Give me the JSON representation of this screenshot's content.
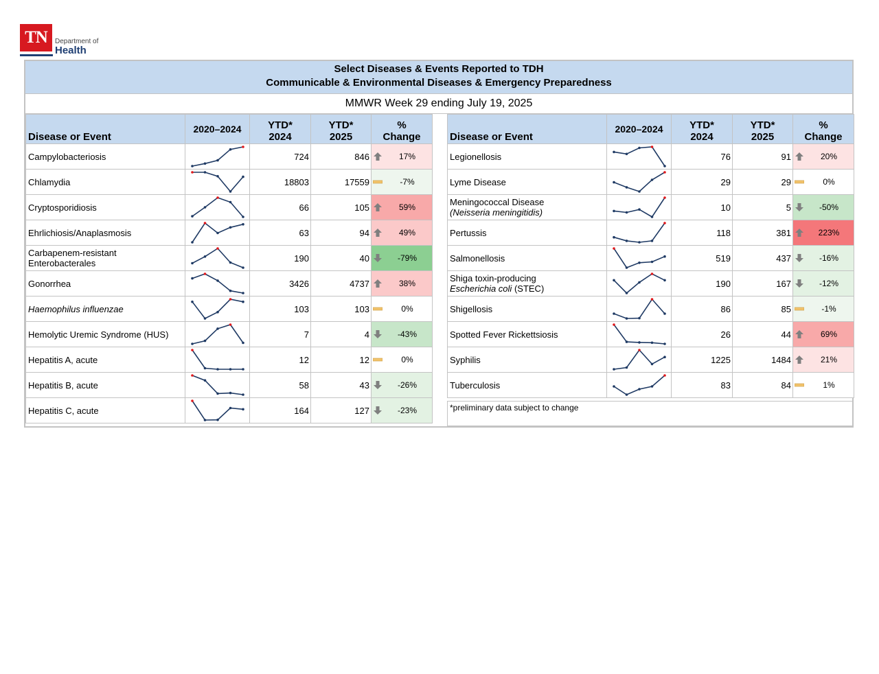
{
  "logo": {
    "mark": "TN",
    "dept": "Department of",
    "health": "Health",
    "colors": {
      "red": "#d71920",
      "navy": "#1f3f73"
    }
  },
  "report": {
    "title_line1": "Select Diseases & Events Reported to TDH",
    "title_line2": "Communicable & Environmental Diseases & Emergency Preparedness",
    "week": "MMWR Week 29 ending July 19, 2025",
    "headers": {
      "name": "Disease or Event",
      "years": "2020–2024",
      "ytd24_a": "YTD*",
      "ytd24_b": "2024",
      "ytd25_a": "YTD*",
      "ytd25_b": "2025",
      "chg_a": "%",
      "chg_b": "Change"
    },
    "footnote": "*preliminary data subject to change",
    "colors": {
      "header_bg": "#c5d9ef",
      "spark_line": "#1f3a64",
      "spark_peak": "#e3191c",
      "up_1": "#fde3e3",
      "up_2": "#fbc9c9",
      "up_3": "#f8a9a9",
      "up_4": "#f4777a",
      "down_1": "#e3f2e3",
      "down_2": "#c7e6c9",
      "down_3": "#8ccf92",
      "flat_neg": "#eef6ee",
      "flat": "#ffffff"
    }
  },
  "left_rows": [
    {
      "name": "Campylobacteriosis",
      "ytd24": "724",
      "ytd25": "846",
      "chg": "17%",
      "icon": "up",
      "tier": "up_1",
      "spark": [
        10,
        14,
        19,
        36,
        40
      ]
    },
    {
      "name": "Chlamydia",
      "ytd24": "18803",
      "ytd25": "17559",
      "chg": "-7%",
      "icon": "flat",
      "tier": "flat_neg",
      "spark": [
        38,
        38,
        31,
        4,
        30
      ]
    },
    {
      "name": "Cryptosporidiosis",
      "ytd24": "66",
      "ytd25": "105",
      "chg": "59%",
      "icon": "up",
      "tier": "up_3",
      "spark": [
        3,
        17,
        32,
        25,
        2
      ]
    },
    {
      "name": "Ehrlichiosis/Anaplasmosis",
      "ytd24": "63",
      "ytd25": "94",
      "chg": "49%",
      "icon": "up",
      "tier": "up_2",
      "spark": [
        2,
        33,
        17,
        26,
        31
      ]
    },
    {
      "name_line1": "Carbapenem-resistant",
      "name_line2": "Enterobacterales",
      "ytd24": "190",
      "ytd25": "40",
      "chg": "-79%",
      "icon": "down",
      "tier": "down_3",
      "spark": [
        24,
        33,
        44,
        25,
        18
      ]
    },
    {
      "name": "Gonorrhea",
      "ytd24": "3426",
      "ytd25": "4737",
      "chg": "38%",
      "icon": "up",
      "tier": "up_2",
      "spark": [
        37,
        41,
        35,
        26,
        24
      ]
    },
    {
      "name": "Haemophilus influenzae",
      "italic": true,
      "ytd24": "103",
      "ytd25": "103",
      "chg": "0%",
      "icon": "flat",
      "tier": "flat",
      "spark": [
        15,
        2,
        7,
        17,
        15
      ]
    },
    {
      "name": "Hemolytic Uremic Syndrome (HUS)",
      "ytd24": "7",
      "ytd25": "4",
      "chg": "-43%",
      "icon": "down",
      "tier": "down_2",
      "spark": [
        1,
        4,
        16,
        20,
        2
      ]
    },
    {
      "name": "Hepatitis A, acute",
      "ytd24": "12",
      "ytd25": "12",
      "chg": "0%",
      "icon": "flat",
      "tier": "flat",
      "spark": [
        60,
        8,
        5,
        5,
        5
      ]
    },
    {
      "name": "Hepatitis B, acute",
      "ytd24": "58",
      "ytd25": "43",
      "chg": "-26%",
      "icon": "down",
      "tier": "down_1",
      "spark": [
        59,
        50,
        26,
        27,
        24
      ]
    },
    {
      "name": "Hepatitis C, acute",
      "ytd24": "164",
      "ytd25": "127",
      "chg": "-23%",
      "icon": "down",
      "tier": "down_1",
      "spark": [
        246,
        153,
        154,
        211,
        205
      ]
    }
  ],
  "right_rows": [
    {
      "name": "Legionellosis",
      "ytd24": "76",
      "ytd25": "91",
      "chg": "20%",
      "icon": "up",
      "tier": "up_1",
      "spark": [
        72,
        68,
        80,
        82,
        44
      ]
    },
    {
      "name": "Lyme Disease",
      "ytd24": "29",
      "ytd25": "29",
      "chg": "0%",
      "icon": "flat",
      "tier": "flat",
      "spark": [
        26,
        20,
        15,
        29,
        38
      ]
    },
    {
      "name_line1": "Meningococcal Disease",
      "name_line2": "(Neisseria meningitidis)",
      "line2_italic": true,
      "ytd24": "10",
      "ytd25": "5",
      "chg": "-50%",
      "icon": "down",
      "tier": "down_2",
      "spark": [
        5,
        4,
        6,
        1,
        14
      ]
    },
    {
      "name": "Pertussis",
      "ytd24": "118",
      "ytd25": "381",
      "chg": "223%",
      "icon": "up",
      "tier": "up_4",
      "spark": [
        10,
        5,
        3,
        5,
        30
      ]
    },
    {
      "name": "Salmonellosis",
      "ytd24": "519",
      "ytd25": "437",
      "chg": "-16%",
      "icon": "down",
      "tier": "down_1",
      "spark": [
        650,
        435,
        490,
        500,
        560
      ]
    },
    {
      "name_line1": "Shiga toxin-producing",
      "name_line2": "Escherichia coli (STEC)",
      "line2_italic_part": "Escherichia coli",
      "line2_rest": " (STEC)",
      "ytd24": "190",
      "ytd25": "167",
      "chg": "-12%",
      "icon": "down",
      "tier": "down_1",
      "spark": [
        190,
        130,
        180,
        220,
        190
      ]
    },
    {
      "name": "Shigellosis",
      "ytd24": "86",
      "ytd25": "85",
      "chg": "-1%",
      "icon": "flat",
      "tier": "flat_neg",
      "spark": [
        120,
        80,
        82,
        240,
        120
      ]
    },
    {
      "name": "Spotted Fever Rickettsiosis",
      "ytd24": "26",
      "ytd25": "44",
      "chg": "69%",
      "icon": "up",
      "tier": "up_3",
      "spark": [
        100,
        40,
        38,
        37,
        33
      ]
    },
    {
      "name": "Syphilis",
      "ytd24": "1225",
      "ytd25": "1484",
      "chg": "21%",
      "icon": "up",
      "tier": "up_1",
      "spark": [
        900,
        1000,
        2000,
        1200,
        1600
      ]
    },
    {
      "name": "Tuberculosis",
      "ytd24": "83",
      "ytd25": "84",
      "chg": "1%",
      "icon": "flat",
      "tier": "flat",
      "spark": [
        120,
        105,
        115,
        120,
        140
      ]
    }
  ]
}
